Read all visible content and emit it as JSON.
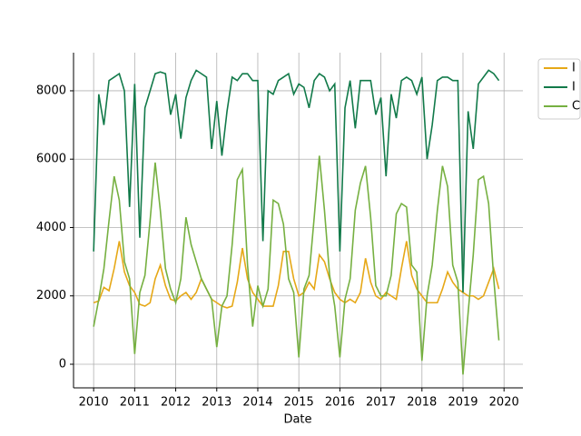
{
  "chart_data": {
    "type": "line",
    "x_label": "Date",
    "x": [
      2010,
      2010.125,
      2010.25,
      2010.375,
      2010.5,
      2010.625,
      2010.75,
      2010.875,
      2011,
      2011.125,
      2011.25,
      2011.375,
      2011.5,
      2011.625,
      2011.75,
      2011.875,
      2012,
      2012.125,
      2012.25,
      2012.375,
      2012.5,
      2012.625,
      2012.75,
      2012.875,
      2013,
      2013.125,
      2013.25,
      2013.375,
      2013.5,
      2013.625,
      2013.75,
      2013.875,
      2014,
      2014.125,
      2014.25,
      2014.375,
      2014.5,
      2014.625,
      2014.75,
      2014.875,
      2015,
      2015.125,
      2015.25,
      2015.375,
      2015.5,
      2015.625,
      2015.75,
      2015.875,
      2016,
      2016.125,
      2016.25,
      2016.375,
      2016.5,
      2016.625,
      2016.75,
      2016.875,
      2017,
      2017.125,
      2017.25,
      2017.375,
      2017.5,
      2017.625,
      2017.75,
      2017.875,
      2018,
      2018.125,
      2018.25,
      2018.375,
      2018.5,
      2018.625,
      2018.75,
      2018.875,
      2019,
      2019.125,
      2019.25,
      2019.375,
      2019.5,
      2019.625,
      2019.75,
      2019.875
    ],
    "series": [
      {
        "name": "I",
        "color": "#e6a817",
        "values": [
          1800,
          1850,
          2250,
          2150,
          2800,
          3600,
          2700,
          2300,
          2100,
          1750,
          1700,
          1800,
          2500,
          2900,
          2300,
          1900,
          1850,
          2000,
          2100,
          1900,
          2100,
          2500,
          2200,
          1900,
          1800,
          1700,
          1650,
          1700,
          2400,
          3400,
          2500,
          2100,
          1900,
          1700,
          1700,
          1700,
          2300,
          3300,
          3300,
          2500,
          2000,
          2100,
          2400,
          2200,
          3200,
          3000,
          2500,
          2100,
          1900,
          1800,
          1900,
          1800,
          2100,
          3100,
          2400,
          2000,
          1900,
          2100,
          2000,
          1900,
          2800,
          3600,
          2600,
          2200,
          2000,
          1800,
          1800,
          1800,
          2200,
          2700,
          2400,
          2200,
          2100,
          2000,
          2000,
          1900,
          2000,
          2400,
          2800,
          2200
        ]
      },
      {
        "name": "I",
        "color": "#127a4a",
        "values": [
          3300,
          7900,
          7000,
          8300,
          8400,
          8500,
          8000,
          4600,
          8200,
          3700,
          7500,
          8000,
          8500,
          8550,
          8500,
          7300,
          7900,
          6600,
          7800,
          8300,
          8600,
          8500,
          8400,
          6300,
          7700,
          6100,
          7400,
          8400,
          8300,
          8500,
          8500,
          8300,
          8300,
          3600,
          8000,
          7900,
          8300,
          8400,
          8500,
          7900,
          8200,
          8100,
          7500,
          8300,
          8500,
          8400,
          8000,
          8200,
          3300,
          7500,
          8300,
          6900,
          8300,
          8300,
          8300,
          7300,
          7800,
          5500,
          7900,
          7200,
          8300,
          8400,
          8300,
          7900,
          8400,
          6000,
          7000,
          8300,
          8400,
          8400,
          8300,
          8300,
          2100,
          7400,
          6300,
          8200,
          8400,
          8600,
          8500,
          8300
        ]
      },
      {
        "name": "C",
        "color": "#76b041",
        "values": [
          1100,
          1900,
          2800,
          4200,
          5500,
          4800,
          3000,
          2500,
          300,
          2100,
          2600,
          4200,
          5900,
          4500,
          2800,
          2200,
          1800,
          2500,
          4300,
          3500,
          3000,
          2500,
          2200,
          1900,
          500,
          1700,
          2000,
          3500,
          5400,
          5700,
          2900,
          1100,
          2300,
          1700,
          2200,
          4800,
          4700,
          4100,
          2500,
          2100,
          200,
          2200,
          2600,
          4300,
          6100,
          4500,
          2600,
          1700,
          200,
          1900,
          2500,
          4500,
          5300,
          5800,
          4300,
          2300,
          2000,
          2000,
          2600,
          4400,
          4700,
          4600,
          2900,
          2700,
          100,
          2000,
          2900,
          4500,
          5800,
          5200,
          2900,
          2400,
          -300,
          1500,
          3200,
          5400,
          5500,
          4700,
          2500,
          700
        ]
      }
    ],
    "xlim": [
      2009.51,
      2020.46
    ],
    "ylim": [
      -691,
      9115
    ],
    "xticks": [
      2010,
      2011,
      2012,
      2013,
      2014,
      2015,
      2016,
      2017,
      2018,
      2019,
      2020
    ],
    "yticks": [
      0,
      2000,
      4000,
      6000,
      8000
    ],
    "grid": true,
    "legend": "upper right"
  }
}
